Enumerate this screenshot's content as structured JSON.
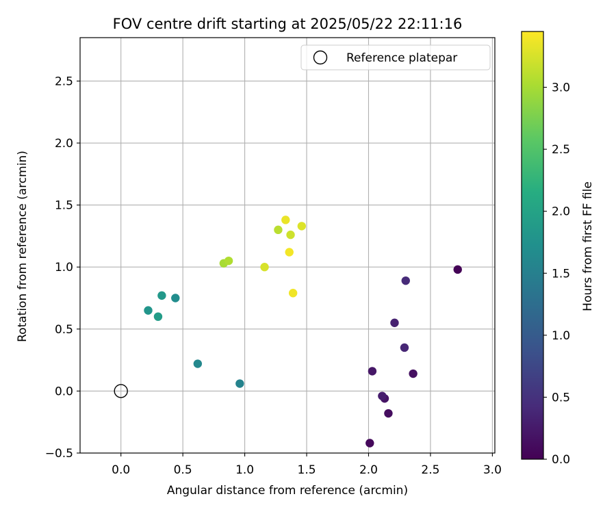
{
  "chart_data": {
    "type": "scatter",
    "title": "FOV centre drift starting at 2025/05/22 22:11:16",
    "xlabel": "Angular distance from reference (arcmin)",
    "ylabel": "Rotation from reference (arcmin)",
    "xlim": [
      -0.33,
      3.02
    ],
    "ylim": [
      -0.5,
      2.85
    ],
    "xticks": [
      0.0,
      0.5,
      1.0,
      1.5,
      2.0,
      2.5,
      3.0
    ],
    "xtick_labels": [
      "0.0",
      "0.5",
      "1.0",
      "1.5",
      "2.0",
      "2.5",
      "3.0"
    ],
    "yticks": [
      -0.5,
      0.0,
      0.5,
      1.0,
      1.5,
      2.0,
      2.5
    ],
    "ytick_labels": [
      "−0.5",
      "0.0",
      "0.5",
      "1.0",
      "1.5",
      "2.0",
      "2.5"
    ],
    "grid": true,
    "legend": {
      "placement": "top-right",
      "entries": [
        "Reference platepar"
      ]
    },
    "reference_point": {
      "x": 0.0,
      "y": 0.0
    },
    "colorbar": {
      "label": "Hours from first FF file",
      "colormap": "viridis",
      "range": [
        0.0,
        3.45
      ],
      "ticks": [
        0.0,
        0.5,
        1.0,
        1.5,
        2.0,
        2.5,
        3.0
      ],
      "tick_labels": [
        "0.0",
        "0.5",
        "1.0",
        "1.5",
        "2.0",
        "2.5",
        "3.0"
      ]
    },
    "points": [
      {
        "x": 2.72,
        "y": 0.98,
        "hours": 0.02
      },
      {
        "x": 2.01,
        "y": -0.42,
        "hours": 0.08
      },
      {
        "x": 2.16,
        "y": -0.18,
        "hours": 0.12
      },
      {
        "x": 2.13,
        "y": -0.06,
        "hours": 0.18
      },
      {
        "x": 2.36,
        "y": 0.14,
        "hours": 0.15
      },
      {
        "x": 2.03,
        "y": 0.16,
        "hours": 0.22
      },
      {
        "x": 2.11,
        "y": -0.04,
        "hours": 0.28
      },
      {
        "x": 2.21,
        "y": 0.55,
        "hours": 0.32
      },
      {
        "x": 2.29,
        "y": 0.35,
        "hours": 0.38
      },
      {
        "x": 2.3,
        "y": 0.89,
        "hours": 0.42
      },
      {
        "x": 0.96,
        "y": 0.06,
        "hours": 1.55
      },
      {
        "x": 0.62,
        "y": 0.22,
        "hours": 1.62
      },
      {
        "x": 0.44,
        "y": 0.75,
        "hours": 1.68
      },
      {
        "x": 0.33,
        "y": 0.77,
        "hours": 1.85
      },
      {
        "x": 0.3,
        "y": 0.6,
        "hours": 1.9
      },
      {
        "x": 0.22,
        "y": 0.65,
        "hours": 1.8
      },
      {
        "x": 0.83,
        "y": 1.03,
        "hours": 3.0
      },
      {
        "x": 0.87,
        "y": 1.05,
        "hours": 3.05
      },
      {
        "x": 1.27,
        "y": 1.3,
        "hours": 3.1
      },
      {
        "x": 1.16,
        "y": 1.0,
        "hours": 3.25
      },
      {
        "x": 1.37,
        "y": 1.26,
        "hours": 3.2
      },
      {
        "x": 1.33,
        "y": 1.38,
        "hours": 3.35
      },
      {
        "x": 1.46,
        "y": 1.33,
        "hours": 3.28
      },
      {
        "x": 1.36,
        "y": 1.12,
        "hours": 3.4
      },
      {
        "x": 1.39,
        "y": 0.79,
        "hours": 3.38
      }
    ]
  }
}
